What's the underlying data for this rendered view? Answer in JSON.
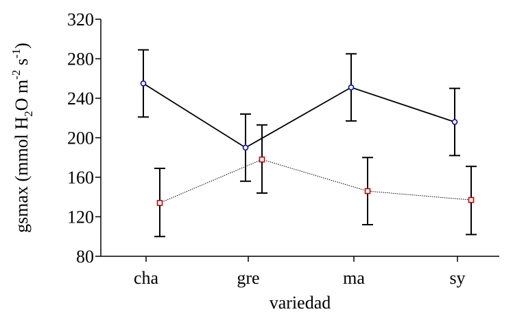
{
  "chart_data": {
    "type": "line",
    "xlabel": "variedad",
    "ylabel": {
      "pre": "gsmax (mmol H",
      "sub": "2",
      "mid": "O m",
      "sup1": "-2",
      "mid2": " s",
      "sup2": "-1",
      "post": ")"
    },
    "categories": [
      "cha",
      "gre",
      "ma",
      "sy"
    ],
    "ylim": [
      80,
      320
    ],
    "yticks": [
      80,
      120,
      160,
      200,
      240,
      280,
      320
    ],
    "grid": false,
    "series": [
      {
        "values": [
          255,
          190,
          251,
          216
        ],
        "err_low": [
          221,
          156,
          217,
          182
        ],
        "err_high": [
          289,
          224,
          285,
          250
        ],
        "color": "#0000cc",
        "line": "solid"
      },
      {
        "values": [
          134,
          178,
          146,
          137
        ],
        "err_low": [
          100,
          144,
          112,
          102
        ],
        "err_high": [
          169,
          213,
          180,
          171
        ],
        "color": "#cc0000",
        "line": "dotted"
      }
    ]
  }
}
